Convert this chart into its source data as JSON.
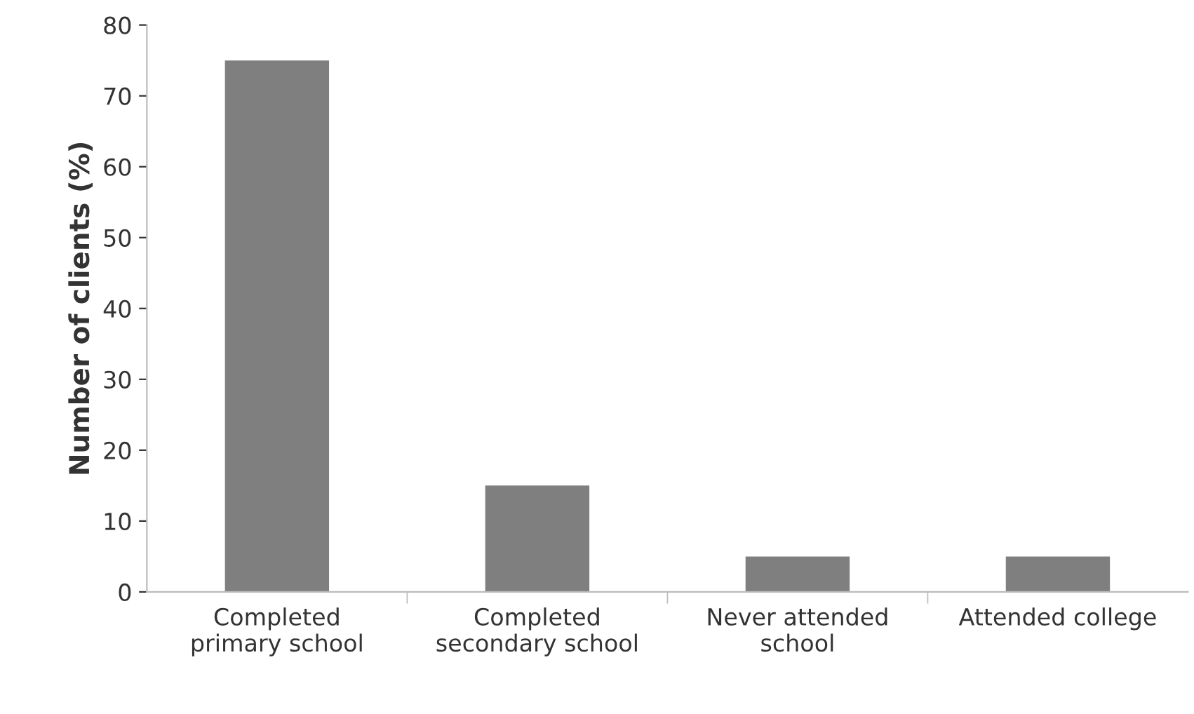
{
  "chart_data": {
    "type": "bar",
    "ylabel": "Number of clients (%)",
    "categories": [
      "Completed\nprimary school",
      "Completed\nsecondary school",
      "Never attended\nschool",
      "Attended college"
    ],
    "values": [
      75,
      15,
      5,
      5
    ],
    "color": "#7f7f7f",
    "ylim": [
      0,
      80
    ],
    "yticks": [
      0,
      10,
      20,
      30,
      40,
      50,
      60,
      70,
      80
    ],
    "grid": false,
    "legend": false
  }
}
